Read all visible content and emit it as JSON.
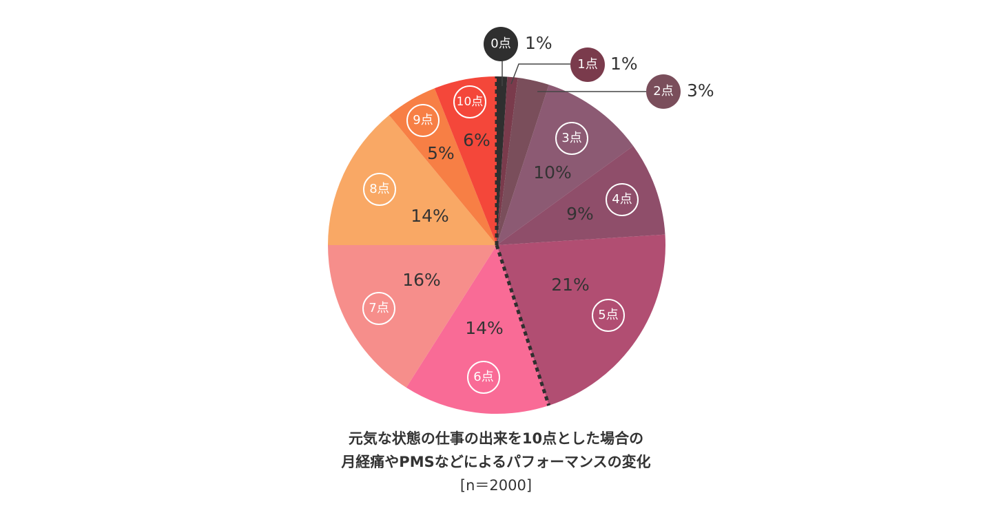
{
  "chart_data": {
    "type": "pie",
    "title_lines": [
      "元気な状態の仕事の出来を10点とした場合の",
      "月経痛やPMSなどによるパフォーマンスの変化",
      "[n＝2000]"
    ],
    "unit": "%",
    "slices": [
      {
        "label": "0点",
        "value": 1,
        "display": "1%",
        "color": "#2f2f2f"
      },
      {
        "label": "1点",
        "value": 1,
        "display": "1%",
        "color": "#7a3b4c"
      },
      {
        "label": "2点",
        "value": 3,
        "display": "3%",
        "color": "#7a4e5b"
      },
      {
        "label": "3点",
        "value": 10,
        "display": "10%",
        "color": "#8c5a73"
      },
      {
        "label": "4点",
        "value": 9,
        "display": "9%",
        "color": "#8f4e6a"
      },
      {
        "label": "5点",
        "value": 21,
        "display": "21%",
        "color": "#b14e72"
      },
      {
        "label": "6点",
        "value": 14,
        "display": "14%",
        "color": "#f96b96"
      },
      {
        "label": "7点",
        "value": 16,
        "display": "16%",
        "color": "#f68e8b"
      },
      {
        "label": "8点",
        "value": 14,
        "display": "14%",
        "color": "#f9a865"
      },
      {
        "label": "9点",
        "value": 5,
        "display": "5%",
        "color": "#f77f45"
      },
      {
        "label": "10点",
        "value": 6,
        "display": "6%",
        "color": "#f4473a"
      }
    ],
    "dotted_divider_between": [
      "10点",
      "0点"
    ],
    "dotted_divider_2_between": [
      "5点",
      "6点"
    ]
  }
}
